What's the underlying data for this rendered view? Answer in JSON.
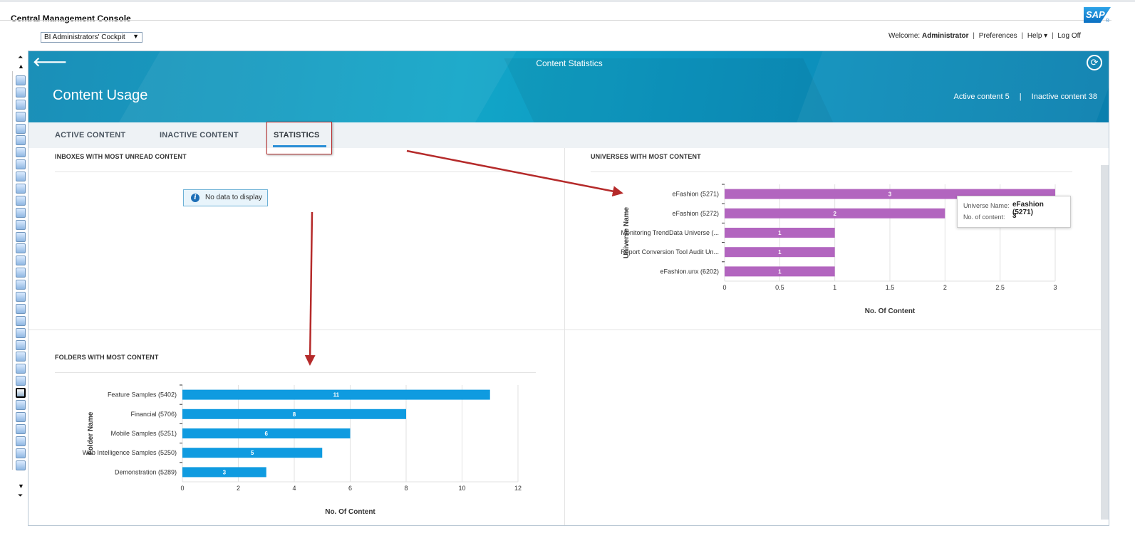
{
  "app": {
    "title": "Central Management Console",
    "logo": "SAP",
    "registered": "®"
  },
  "header": {
    "cockpit_select": "BI Administrators' Cockpit",
    "welcome_label": "Welcome:",
    "user": "Administrator",
    "preferences": "Preferences",
    "help": "Help ▾",
    "logoff": "Log Off"
  },
  "hero": {
    "subtitle": "Content Statistics",
    "title": "Content Usage",
    "active_content": "Active content 5",
    "inactive_content": "Inactive content 38",
    "back_icon": "arrow-left-icon",
    "refresh_icon": "refresh-icon"
  },
  "tabs": [
    {
      "label": "ACTIVE CONTENT"
    },
    {
      "label": "INACTIVE CONTENT"
    },
    {
      "label": "STATISTICS",
      "selected": true
    }
  ],
  "sections": {
    "inboxes": {
      "title": "INBOXES WITH MOST UNREAD CONTENT",
      "empty_message": "No data to display"
    },
    "universes": {
      "title": "UNIVERSES WITH MOST CONTENT"
    },
    "folders": {
      "title": "FOLDERS WITH MOST CONTENT"
    }
  },
  "chart_data": [
    {
      "type": "bar",
      "orientation": "horizontal",
      "title": "",
      "categories": [
        "eFashion (5271)",
        "eFashion (5272)",
        "Monitoring TrendData Universe (...",
        "Report Conversion Tool Audit Un...",
        "eFashion.unx (6202)"
      ],
      "values": [
        3,
        2,
        1,
        1,
        1
      ],
      "xlabel": "No. Of Content",
      "ylabel": "Universe Name",
      "xlim": [
        0,
        3
      ],
      "ticks": [
        "0",
        "0.5",
        "1",
        "1.5",
        "2",
        "2.5",
        "3"
      ],
      "grid": true,
      "color": "#b265bf"
    },
    {
      "type": "bar",
      "orientation": "horizontal",
      "title": "",
      "categories": [
        "Feature Samples (5402)",
        "Financial (5706)",
        "Mobile Samples (5251)",
        "Web Intelligence Samples (5250)",
        "Demonstration (5289)"
      ],
      "values": [
        11,
        8,
        6,
        5,
        3
      ],
      "xlabel": "No. Of Content",
      "ylabel": "Folder Name",
      "xlim": [
        0,
        12
      ],
      "ticks": [
        "0",
        "2",
        "4",
        "6",
        "8",
        "10",
        "12"
      ],
      "grid": true,
      "color": "#0f9be0"
    }
  ],
  "tooltip": {
    "name_label": "Universe Name:",
    "name_value": "eFashion (5271)",
    "count_label": "No. of content:",
    "count_value": "3"
  },
  "colors": {
    "hero": "#12a6c8",
    "tab_underline": "#2b8fd6",
    "annotation": "#b52a2a"
  }
}
